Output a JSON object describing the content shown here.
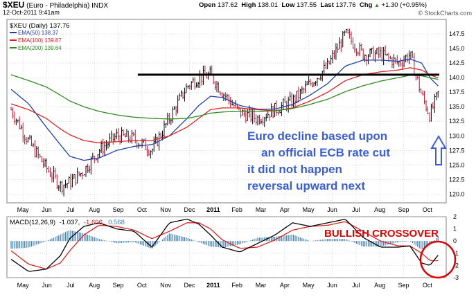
{
  "colors": {
    "price_bar": "#000000",
    "price_bar_accent": "#c8102e",
    "ema50": "#1f3fa8",
    "ema100": "#e02020",
    "ema200": "#2e8b1f",
    "resistance": "#000000",
    "annotation": "#3a5ed8",
    "macd_line": "#000000",
    "signal_line": "#e02020",
    "histogram": "#3d7fbf",
    "crossover_text": "#e00000",
    "circle": "#e00000",
    "arrow": "#3a5ed8",
    "grid": "#c8c8c8"
  },
  "header": {
    "symbol": "$XEU",
    "name": "(Euro - Philadelphia)",
    "exchange": "INDX",
    "date": "12-Oct-2011 9:41am",
    "open_label": "Open",
    "open": "137.62",
    "high_label": "High",
    "high": "138.01",
    "low_label": "Low",
    "low": "137.55",
    "last_label": "Last",
    "last": "137.76",
    "chg_label": "Chg",
    "chg": "+1.30 (+0.95%)",
    "chg_arrow": "▲",
    "watermark": "© StockCharts.com"
  },
  "legend": {
    "main": "$XEU (Daily) 137.76",
    "ema50": "EMA(50) 138.37",
    "ema100": "EMA(100) 139.87",
    "ema200": "EMA(200) 139.64"
  },
  "macd_legend": {
    "label": "MACD(12,26,9)",
    "v1": "-1.037",
    "v2": "-1.606",
    "v3": "0.568"
  },
  "annotations": {
    "line1": "Euro decline based upon",
    "line2": "an official ECB rate cut",
    "line3": "it did not happen",
    "line4": "reversal upward next",
    "crossover": "BULLISH CROSSOVER",
    "arrow_icon": "up-arrow-icon"
  },
  "chart_data": [
    {
      "type": "line",
      "name": "price",
      "ylim": [
        118.5,
        150
      ],
      "y_ticks": [
        120.0,
        122.5,
        125.0,
        127.5,
        130.0,
        132.5,
        135.0,
        137.5,
        140.0,
        142.5,
        145.0,
        147.5
      ],
      "x_ticks": [
        "May",
        "Jun",
        "Jul",
        "Aug",
        "Sep",
        "Oct",
        "Nov",
        "Dec",
        "2011",
        "Feb",
        "Mar",
        "Apr",
        "May",
        "Jun",
        "Jul",
        "Aug",
        "Sep",
        "Oct"
      ],
      "grid": true,
      "resistance": 140.5,
      "x_domain": [
        0,
        365
      ],
      "x": [
        0,
        15,
        30,
        42,
        50,
        62,
        75,
        90,
        105,
        120,
        135,
        150,
        160,
        170,
        180,
        195,
        210,
        225,
        240,
        255,
        270,
        285,
        300,
        315,
        330,
        340,
        350,
        357,
        365
      ],
      "series": [
        {
          "values": [
            134.5,
            129,
            124.5,
            121.5,
            122,
            124,
            127.5,
            130,
            129.5,
            127.5,
            133,
            138.5,
            140,
            140.5,
            137.5,
            134,
            133,
            134.5,
            136,
            139,
            142,
            147.5,
            144,
            144,
            142.5,
            144,
            137,
            133.5,
            137.8
          ]
        },
        {
          "name": "EMA(50)",
          "values": [
            138,
            135.5,
            131.5,
            128.5,
            126.5,
            125.8,
            126.2,
            127.5,
            128.2,
            128.5,
            130,
            133,
            135.2,
            136.8,
            136.6,
            135.2,
            134.6,
            134.6,
            135.4,
            137,
            139,
            142,
            143,
            143,
            142.8,
            143.2,
            142.5,
            140,
            138.37
          ]
        },
        {
          "name": "EMA(100)",
          "values": [
            135.5,
            134.5,
            133,
            131.2,
            130.2,
            129.2,
            128.8,
            129,
            129.2,
            129.2,
            130,
            131.5,
            133,
            134.5,
            134.8,
            134.8,
            134.5,
            134.3,
            134.8,
            136,
            137.5,
            139.5,
            140.5,
            141,
            141.3,
            141.7,
            141.3,
            140.5,
            139.87
          ]
        },
        {
          "name": "EMA(200)",
          "values": [
            140.5,
            139.5,
            138.4,
            137,
            136,
            135,
            134.2,
            133.6,
            133.2,
            133,
            132.9,
            133,
            133.4,
            133.9,
            134.1,
            134.2,
            134.2,
            134.3,
            134.7,
            135.4,
            136.3,
            137.6,
            138.6,
            139.4,
            140,
            140.4,
            140.3,
            140,
            139.64
          ]
        }
      ]
    },
    {
      "type": "line",
      "name": "MACD(12,26,9)",
      "ylim": [
        -3,
        2
      ],
      "y_ticks": [
        2,
        1,
        0,
        -1,
        -2,
        -3
      ],
      "x_ticks": [
        "May",
        "Jun",
        "Jul",
        "Aug",
        "Sep",
        "Oct",
        "Nov",
        "Dec",
        "2011",
        "Feb",
        "Mar",
        "Apr",
        "May",
        "Jun",
        "Jul",
        "Aug",
        "Sep",
        "Oct"
      ],
      "x_domain": [
        0,
        365
      ],
      "x": [
        0,
        15,
        30,
        42,
        50,
        62,
        75,
        90,
        105,
        120,
        135,
        150,
        160,
        170,
        180,
        195,
        210,
        225,
        240,
        255,
        270,
        285,
        300,
        315,
        330,
        340,
        350,
        357,
        365
      ],
      "series": [
        {
          "values": [
            -1.5,
            -2.5,
            -2.3,
            -1.2,
            0.2,
            1.2,
            1.5,
            1.0,
            0.8,
            -0.5,
            1.5,
            1.8,
            1.4,
            0.5,
            -0.5,
            -0.9,
            -0.2,
            0.5,
            1.5,
            1.2,
            1.5,
            1.8,
            0.3,
            -0.5,
            -0.5,
            -0.4,
            -1.8,
            -2.0,
            -1.04
          ]
        },
        {
          "values": [
            -0.8,
            -1.9,
            -2.3,
            -1.8,
            -0.8,
            0.5,
            1.3,
            1.2,
            0.9,
            0.2,
            0.8,
            1.5,
            1.5,
            1.0,
            0.1,
            -0.6,
            -0.5,
            0.1,
            0.9,
            1.2,
            1.3,
            1.6,
            0.8,
            0.0,
            -0.4,
            -0.4,
            -1.0,
            -1.6,
            -1.61
          ]
        },
        {
          "values": [
            -0.7,
            -0.6,
            0.0,
            0.6,
            1.0,
            0.7,
            0.2,
            -0.2,
            -0.1,
            -0.7,
            0.7,
            0.3,
            -0.1,
            -0.5,
            -0.6,
            -0.3,
            0.3,
            0.4,
            0.6,
            0.0,
            0.2,
            0.2,
            -0.5,
            -0.5,
            -0.1,
            0.0,
            -0.8,
            -0.4,
            0.57
          ]
        }
      ]
    }
  ]
}
